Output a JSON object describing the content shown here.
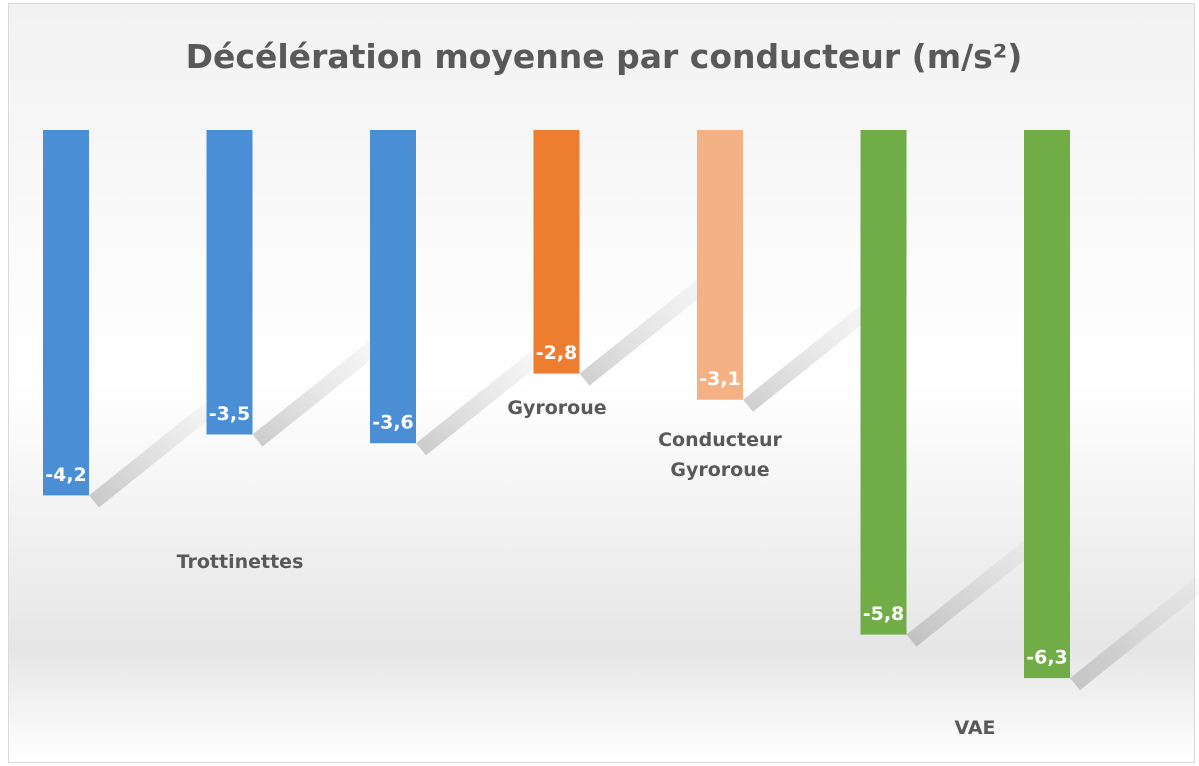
{
  "chart_data": {
    "type": "bar",
    "title": "Décélération moyenne par conducteur (m/s²)",
    "categories": [
      null,
      null,
      null,
      null,
      null,
      null,
      null
    ],
    "values": [
      -4.2,
      -3.5,
      -3.6,
      -2.8,
      -3.1,
      -5.8,
      -6.3
    ],
    "value_labels": [
      "-4,2",
      "-3,5",
      "-3,6",
      "-2,8",
      "-3,1",
      "-5,8",
      "-6,3"
    ],
    "colors": [
      "#4a8fd6",
      "#4a8fd6",
      "#4a8fd6",
      "#ed7d31",
      "#f4b183",
      "#70ad47",
      "#70ad47"
    ],
    "ylim": [
      -7,
      0
    ],
    "annotations": [
      "Trottinettes",
      "Gyroroue",
      "Conducteur Gyroroue",
      "VAE"
    ]
  }
}
